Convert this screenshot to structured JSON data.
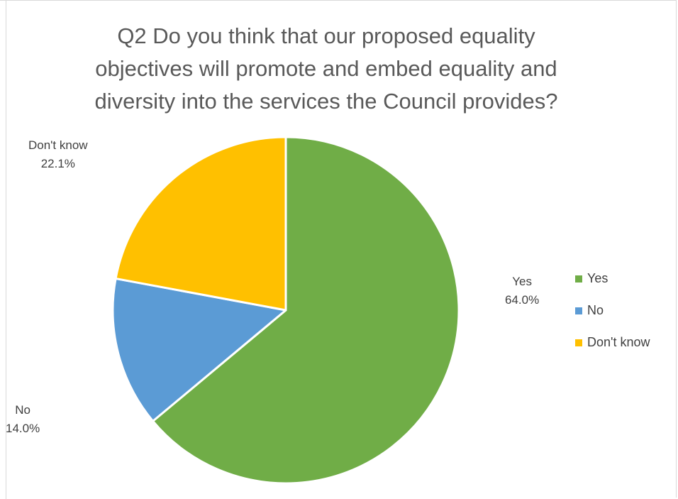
{
  "chart_data": {
    "type": "pie",
    "title_lines": [
      "Q2 Do you think that our proposed equality",
      "objectives will promote and embed equality and",
      "diversity into the services the Council provides?"
    ],
    "categories": [
      "Yes",
      "No",
      "Don't know"
    ],
    "values": [
      64.0,
      14.0,
      22.1
    ],
    "value_labels": [
      "64.0%",
      "14.0%",
      "22.1%"
    ],
    "colors": [
      "#70ad47",
      "#5b9bd5",
      "#ffc000"
    ],
    "legend_position": "right"
  },
  "legend": {
    "items": [
      {
        "label": "Yes",
        "color": "#70ad47"
      },
      {
        "label": "No",
        "color": "#5b9bd5"
      },
      {
        "label": "Don't know",
        "color": "#ffc000"
      }
    ]
  }
}
